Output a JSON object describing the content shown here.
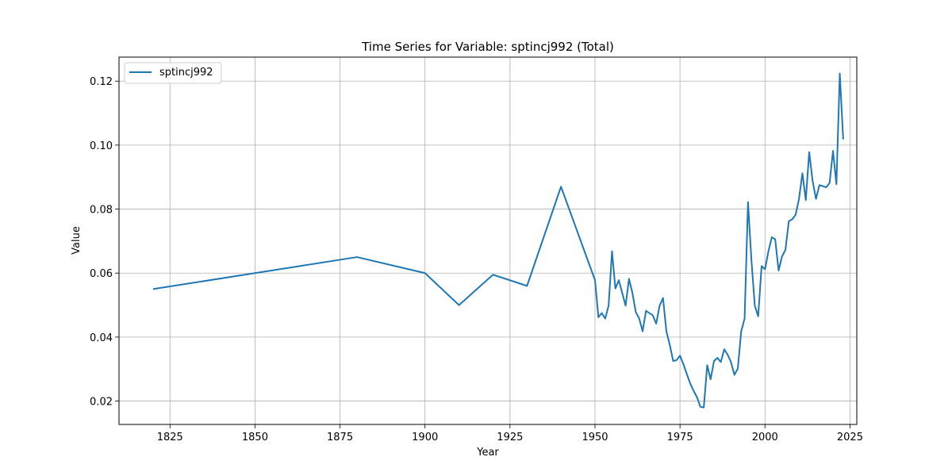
{
  "chart_data": {
    "type": "line",
    "title": "Time Series for Variable: sptincj992 (Total)",
    "xlabel": "Year",
    "ylabel": "Value",
    "xlim": [
      1810,
      2027
    ],
    "ylim": [
      0.0127,
      0.1275
    ],
    "xticks": [
      1825,
      1850,
      1875,
      1900,
      1925,
      1950,
      1975,
      2000,
      2025
    ],
    "yticks": [
      0.02,
      0.04,
      0.06,
      0.08,
      0.1,
      0.12
    ],
    "ytick_labels": [
      "0.02",
      "0.04",
      "0.06",
      "0.08",
      "0.10",
      "0.12"
    ],
    "grid": true,
    "legend_position": "top-left",
    "series": [
      {
        "name": "sptincj992",
        "color": "#1f77b4",
        "x": [
          1820,
          1880,
          1900,
          1910,
          1920,
          1930,
          1940,
          1950,
          1951,
          1952,
          1953,
          1954,
          1955,
          1956,
          1957,
          1958,
          1959,
          1960,
          1961,
          1962,
          1963,
          1964,
          1965,
          1966,
          1967,
          1968,
          1969,
          1970,
          1971,
          1972,
          1973,
          1974,
          1975,
          1976,
          1977,
          1978,
          1979,
          1980,
          1981,
          1982,
          1983,
          1984,
          1985,
          1986,
          1987,
          1988,
          1989,
          1990,
          1991,
          1992,
          1993,
          1994,
          1995,
          1996,
          1997,
          1998,
          1999,
          2000,
          2001,
          2002,
          2003,
          2004,
          2005,
          2006,
          2007,
          2008,
          2009,
          2010,
          2011,
          2012,
          2013,
          2014,
          2015,
          2016,
          2017,
          2018,
          2019,
          2020,
          2021,
          2022,
          2023
        ],
        "values": [
          0.055,
          0.065,
          0.06,
          0.05,
          0.0595,
          0.056,
          0.087,
          0.0578,
          0.0462,
          0.0475,
          0.0458,
          0.0498,
          0.0668,
          0.0552,
          0.0578,
          0.0538,
          0.0498,
          0.0582,
          0.0538,
          0.0478,
          0.0458,
          0.0418,
          0.0482,
          0.0475,
          0.0468,
          0.0442,
          0.0498,
          0.0522,
          0.0418,
          0.0375,
          0.0325,
          0.0328,
          0.0342,
          0.0315,
          0.0285,
          0.0255,
          0.0232,
          0.0212,
          0.0182,
          0.018,
          0.0312,
          0.0268,
          0.0325,
          0.0335,
          0.0322,
          0.0362,
          0.0345,
          0.0322,
          0.0282,
          0.0302,
          0.0418,
          0.0458,
          0.0822,
          0.0642,
          0.0498,
          0.0465,
          0.0622,
          0.0612,
          0.0668,
          0.0712,
          0.0706,
          0.0608,
          0.0652,
          0.0672,
          0.0762,
          0.0768,
          0.0782,
          0.0832,
          0.0912,
          0.0828,
          0.0978,
          0.0888,
          0.0832,
          0.0875,
          0.0872,
          0.0868,
          0.0882,
          0.0982,
          0.0878,
          0.1224,
          0.1018
        ]
      }
    ]
  }
}
